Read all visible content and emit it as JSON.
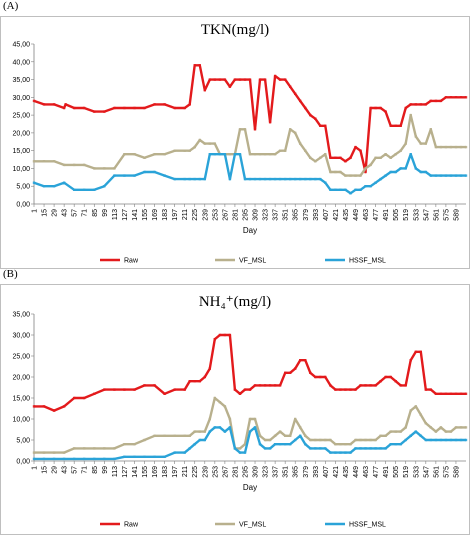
{
  "panels": [
    {
      "label": "(A)"
    },
    {
      "label": "(B)"
    }
  ],
  "chart_data": [
    {
      "type": "line",
      "title": "TKN(mg/l)",
      "xlabel": "Day",
      "ylabel": "",
      "ylim": [
        0,
        45
      ],
      "yticks": [
        "0,00",
        "5,00",
        "10,00",
        "15,00",
        "20,00",
        "25,00",
        "30,00",
        "35,00",
        "40,00",
        "45,00"
      ],
      "xticks": [
        1,
        15,
        29,
        43,
        57,
        71,
        85,
        99,
        113,
        127,
        141,
        155,
        169,
        183,
        197,
        211,
        225,
        239,
        253,
        267,
        281,
        295,
        309,
        323,
        337,
        351,
        365,
        379,
        393,
        407,
        421,
        435,
        449,
        463,
        477,
        491,
        505,
        519,
        533,
        547,
        561,
        575,
        589
      ],
      "xlim": [
        1,
        603
      ],
      "grid": false,
      "legend_position": "bottom",
      "series": [
        {
          "name": "Raw",
          "color": "#e31a1c",
          "x": [
            1,
            15,
            29,
            43,
            45,
            57,
            71,
            85,
            99,
            113,
            127,
            141,
            155,
            169,
            183,
            197,
            211,
            218,
            225,
            232,
            239,
            246,
            253,
            260,
            267,
            274,
            281,
            288,
            295,
            302,
            309,
            316,
            323,
            330,
            337,
            344,
            351,
            358,
            365,
            372,
            379,
            386,
            393,
            400,
            407,
            414,
            421,
            428,
            435,
            442,
            449,
            456,
            463,
            470,
            477,
            484,
            491,
            498,
            505,
            512,
            519,
            526,
            533,
            540,
            547,
            554,
            561,
            568,
            575,
            582,
            589,
            596,
            603
          ],
          "values": [
            29,
            28,
            28,
            27,
            28,
            27,
            27,
            26,
            26,
            27,
            27,
            27,
            27,
            28,
            28,
            27,
            27,
            28,
            39,
            39,
            32,
            35,
            35,
            35,
            35,
            33,
            35,
            35,
            35,
            35,
            21,
            35,
            35,
            23,
            36,
            35,
            35,
            33,
            31,
            29,
            27,
            25,
            24,
            22,
            22,
            13,
            13,
            13,
            12,
            13,
            16,
            15,
            9,
            27,
            27,
            27,
            26,
            22,
            22,
            22,
            27,
            28,
            28,
            28,
            28,
            29,
            29,
            29,
            30,
            30,
            30,
            30,
            30
          ]
        },
        {
          "name": "VF_MSL",
          "color": "#b8b08d",
          "x": [
            1,
            15,
            29,
            43,
            57,
            71,
            85,
            99,
            113,
            127,
            141,
            155,
            169,
            183,
            197,
            211,
            218,
            225,
            232,
            239,
            246,
            253,
            260,
            267,
            274,
            281,
            288,
            295,
            302,
            309,
            316,
            323,
            330,
            337,
            344,
            351,
            358,
            365,
            372,
            379,
            386,
            393,
            400,
            407,
            414,
            421,
            428,
            435,
            442,
            449,
            456,
            463,
            470,
            477,
            484,
            491,
            498,
            505,
            512,
            519,
            526,
            533,
            540,
            547,
            554,
            561,
            568,
            575,
            582,
            589,
            596,
            603
          ],
          "values": [
            12,
            12,
            12,
            11,
            11,
            11,
            10,
            10,
            10,
            14,
            14,
            13,
            14,
            14,
            15,
            15,
            15,
            16,
            18,
            17,
            17,
            17,
            14,
            14,
            14,
            14,
            21,
            21,
            14,
            14,
            14,
            14,
            14,
            14,
            15,
            15,
            21,
            20,
            17,
            15,
            13,
            12,
            13,
            14,
            9,
            9,
            9,
            8,
            8,
            8,
            8,
            10,
            11,
            13,
            13,
            14,
            13,
            14,
            15,
            17,
            25,
            19,
            17,
            17,
            21,
            16,
            16,
            16,
            16,
            16,
            16,
            16
          ]
        },
        {
          "name": "HSSF_MSL",
          "color": "#2aa3d8",
          "x": [
            1,
            15,
            29,
            43,
            57,
            71,
            85,
            99,
            113,
            127,
            141,
            155,
            169,
            183,
            197,
            211,
            218,
            225,
            232,
            239,
            246,
            253,
            260,
            267,
            274,
            281,
            288,
            295,
            302,
            309,
            316,
            323,
            330,
            337,
            344,
            351,
            358,
            365,
            372,
            379,
            386,
            393,
            400,
            407,
            414,
            421,
            428,
            435,
            442,
            449,
            456,
            463,
            470,
            477,
            484,
            491,
            498,
            505,
            512,
            519,
            526,
            533,
            540,
            547,
            554,
            561,
            568,
            575,
            582,
            589,
            596,
            603
          ],
          "values": [
            6,
            5,
            5,
            6,
            4,
            4,
            4,
            5,
            8,
            8,
            8,
            9,
            9,
            8,
            7,
            7,
            7,
            7,
            7,
            7,
            14,
            14,
            14,
            14,
            7,
            14,
            14,
            7,
            7,
            7,
            7,
            7,
            7,
            7,
            7,
            7,
            7,
            7,
            7,
            7,
            7,
            7,
            7,
            6,
            4,
            4,
            4,
            4,
            3,
            4,
            4,
            5,
            5,
            6,
            7,
            8,
            9,
            9,
            10,
            10,
            14,
            10,
            9,
            9,
            8,
            8,
            8,
            8,
            8,
            8,
            8,
            8
          ]
        }
      ]
    },
    {
      "type": "line",
      "title": "NH₄⁺(mg/l)",
      "xlabel": "Day",
      "ylabel": "",
      "ylim": [
        0,
        35
      ],
      "yticks": [
        "0,00",
        "5,00",
        "10,00",
        "15,00",
        "20,00",
        "25,00",
        "30,00",
        "35,00"
      ],
      "xticks": [
        1,
        15,
        29,
        43,
        57,
        71,
        85,
        99,
        113,
        127,
        141,
        155,
        169,
        183,
        197,
        211,
        225,
        239,
        253,
        267,
        281,
        295,
        309,
        323,
        337,
        351,
        365,
        379,
        393,
        407,
        421,
        435,
        449,
        463,
        477,
        491,
        505,
        519,
        533,
        547,
        561,
        575,
        589
      ],
      "xlim": [
        1,
        603
      ],
      "grid": false,
      "legend_position": "bottom",
      "series": [
        {
          "name": "Raw",
          "color": "#e31a1c",
          "x": [
            1,
            15,
            29,
            43,
            57,
            71,
            85,
            99,
            113,
            127,
            141,
            155,
            169,
            183,
            197,
            211,
            218,
            225,
            232,
            239,
            246,
            253,
            260,
            267,
            274,
            281,
            288,
            295,
            302,
            309,
            316,
            323,
            330,
            337,
            344,
            351,
            358,
            365,
            372,
            379,
            386,
            393,
            400,
            407,
            414,
            421,
            428,
            435,
            442,
            449,
            456,
            463,
            470,
            477,
            484,
            491,
            498,
            505,
            512,
            519,
            526,
            533,
            540,
            547,
            554,
            561,
            568,
            575,
            582,
            589,
            596,
            603
          ],
          "values": [
            13,
            13,
            12,
            13,
            15,
            15,
            16,
            17,
            17,
            17,
            17,
            18,
            18,
            16,
            17,
            17,
            19,
            19,
            19,
            20,
            22,
            29,
            30,
            30,
            30,
            17,
            16,
            17,
            17,
            18,
            18,
            18,
            18,
            18,
            18,
            21,
            21,
            22,
            24,
            24,
            21,
            20,
            20,
            20,
            18,
            17,
            17,
            17,
            17,
            17,
            18,
            18,
            18,
            18,
            19,
            20,
            20,
            19,
            18,
            18,
            24,
            26,
            26,
            17,
            17,
            16,
            16,
            16,
            16,
            16,
            16,
            16
          ]
        },
        {
          "name": "VF_MSL",
          "color": "#b8b08d",
          "x": [
            1,
            15,
            29,
            43,
            57,
            71,
            85,
            99,
            113,
            127,
            141,
            155,
            169,
            183,
            197,
            211,
            218,
            225,
            232,
            239,
            246,
            253,
            260,
            267,
            274,
            281,
            288,
            295,
            302,
            309,
            316,
            323,
            330,
            337,
            344,
            351,
            358,
            365,
            372,
            379,
            386,
            393,
            400,
            407,
            414,
            421,
            428,
            435,
            442,
            449,
            456,
            463,
            470,
            477,
            484,
            491,
            498,
            505,
            512,
            519,
            526,
            533,
            540,
            547,
            554,
            561,
            568,
            575,
            582,
            589,
            596,
            603
          ],
          "values": [
            2,
            2,
            2,
            2,
            3,
            3,
            3,
            3,
            3,
            4,
            4,
            5,
            6,
            6,
            6,
            6,
            6,
            7,
            7,
            7,
            10,
            15,
            14,
            13,
            10,
            3,
            3,
            4,
            10,
            10,
            6,
            5,
            5,
            6,
            7,
            6,
            6,
            10,
            8,
            6,
            5,
            5,
            5,
            5,
            5,
            4,
            4,
            4,
            4,
            5,
            5,
            5,
            5,
            5,
            6,
            6,
            7,
            7,
            7,
            8,
            12,
            13,
            11,
            9,
            8,
            7,
            8,
            7,
            7,
            8,
            8,
            8
          ]
        },
        {
          "name": "HSSF_MSL",
          "color": "#2aa3d8",
          "x": [
            1,
            15,
            29,
            43,
            57,
            71,
            85,
            99,
            113,
            127,
            141,
            155,
            169,
            183,
            197,
            211,
            218,
            225,
            232,
            239,
            246,
            253,
            260,
            267,
            274,
            281,
            288,
            295,
            302,
            309,
            316,
            323,
            330,
            337,
            344,
            351,
            358,
            365,
            372,
            379,
            386,
            393,
            400,
            407,
            414,
            421,
            428,
            435,
            442,
            449,
            456,
            463,
            470,
            477,
            484,
            491,
            498,
            505,
            512,
            519,
            526,
            533,
            540,
            547,
            554,
            561,
            568,
            575,
            582,
            589,
            596,
            603
          ],
          "values": [
            0.5,
            0.5,
            0.5,
            0.5,
            0.5,
            0.5,
            0.5,
            0.5,
            0.5,
            1,
            1,
            1,
            1,
            1,
            2,
            2,
            3,
            4,
            5,
            5,
            7,
            8,
            8,
            7,
            8,
            3,
            2,
            2,
            7,
            8,
            4,
            3,
            3,
            4,
            4,
            4,
            4,
            5,
            6,
            4,
            3,
            3,
            3,
            3,
            2,
            2,
            2,
            2,
            2,
            3,
            3,
            3,
            3,
            3,
            3,
            3,
            4,
            4,
            4,
            5,
            6,
            7,
            6,
            5,
            5,
            5,
            5,
            5,
            5,
            5,
            5,
            5
          ]
        }
      ]
    }
  ]
}
